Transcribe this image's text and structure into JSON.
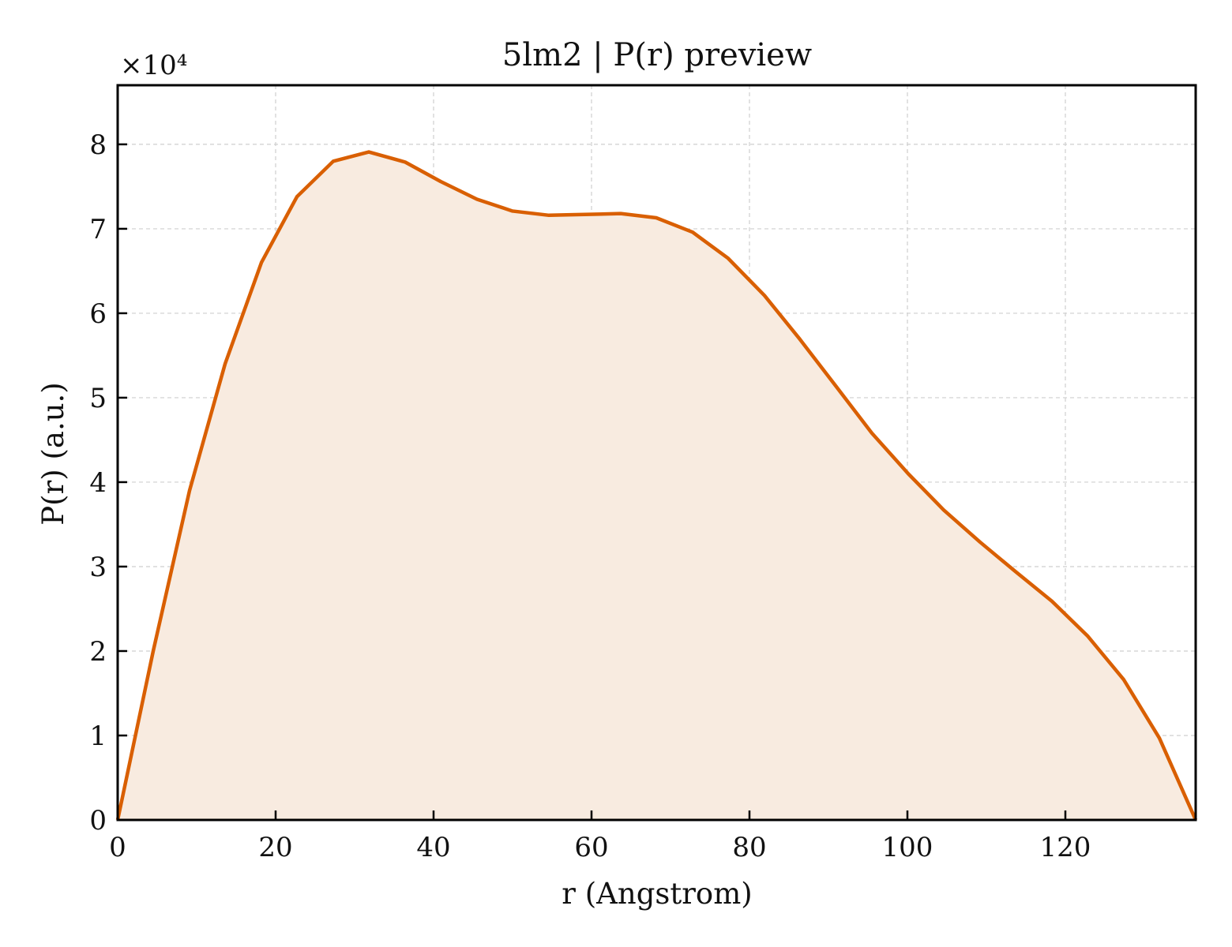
{
  "chart_data": {
    "type": "area",
    "title": "5lm2 | P(r) preview",
    "xlabel": "r (Angstrom)",
    "ylabel": "P(r) (a.u.)",
    "y_multiplier_label": "×10⁴",
    "xlim": [
      0,
      136.5
    ],
    "ylim": [
      0,
      8.7
    ],
    "y_units_multiplier": 10000,
    "x_ticks": [
      0,
      20,
      40,
      60,
      80,
      100,
      120
    ],
    "y_ticks": [
      0,
      1,
      2,
      3,
      4,
      5,
      6,
      7,
      8
    ],
    "grid": true,
    "legend": "none",
    "series": [
      {
        "color": "#d95f02",
        "fill_color": "#f8ebe0",
        "x": [
          0,
          4.5,
          9.1,
          13.6,
          18.2,
          22.7,
          27.3,
          31.8,
          36.4,
          40.9,
          45.5,
          50.0,
          54.6,
          59.1,
          63.7,
          68.2,
          72.8,
          77.3,
          81.9,
          86.4,
          91.0,
          95.5,
          100.1,
          104.6,
          109.2,
          113.7,
          118.3,
          122.8,
          127.4,
          131.9,
          136.5
        ],
        "y": [
          0,
          2.0,
          3.9,
          5.4,
          6.6,
          7.38,
          7.8,
          7.91,
          7.79,
          7.56,
          7.35,
          7.21,
          7.16,
          7.17,
          7.18,
          7.13,
          6.96,
          6.65,
          6.21,
          5.69,
          5.13,
          4.58,
          4.1,
          3.67,
          3.29,
          2.94,
          2.59,
          2.18,
          1.66,
          0.97,
          0
        ]
      }
    ]
  }
}
